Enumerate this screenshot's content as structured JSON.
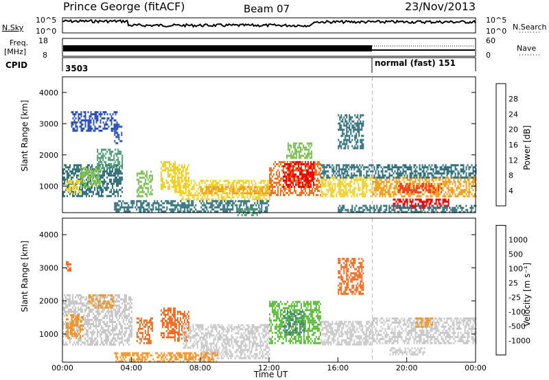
{
  "header": {
    "station": "Prince George (fitACF)",
    "beam": "Beam 07",
    "date": "23/Nov/2013"
  },
  "panels": {
    "nsky": {
      "left_label": "N.Sky",
      "left_ticks": [
        "10^5",
        "10^0"
      ],
      "right_ticks": [
        "10^5",
        "10^0"
      ],
      "right_label": "N.Search"
    },
    "freq": {
      "left_label": "Freq.",
      "left_unit": "[MHz]",
      "left_ticks": [
        "18",
        "8"
      ],
      "right_ticks": [
        "60",
        "0"
      ],
      "right_label": "Nave"
    },
    "cpid": {
      "label": "CPID",
      "value_left": "3503",
      "value_right": "normal (fast) 151"
    }
  },
  "colors": {
    "power": [
      "#1e1ee6",
      "#2a50b4",
      "#2f6f7a",
      "#4a9870",
      "#7cc050",
      "#f0d020",
      "#f0a018",
      "#f07018",
      "#f03a14",
      "#e80000"
    ],
    "velocity": [
      "#1a1adc",
      "#2d5fbe",
      "#3f8a6a",
      "#5fbe3c",
      "#c8c8c8",
      "#c8c8c8",
      "#f09628",
      "#f06a1e",
      "#ee3c14",
      "#e60000"
    ],
    "nsky_line": "#000000",
    "range_gap": "#ffffff"
  },
  "chart_data": [
    {
      "type": "heatmap",
      "name": "power",
      "ylabel": "Slant Range [km]",
      "yticks": [
        "4000",
        "3000",
        "2000",
        "1000"
      ],
      "ylim": [
        150,
        4500
      ],
      "xlim": [
        0,
        24
      ],
      "colorbar_label": "Power [dB]",
      "colorbar_ticks": [
        "28",
        "24",
        "20",
        "16",
        "12",
        "8",
        "4"
      ],
      "colorbar_range": [
        0,
        32
      ],
      "mode_change_hour": 18.0,
      "patches": [
        {
          "t0": 0.0,
          "t1": 3.5,
          "r0": 700,
          "r1": 1700,
          "v": 8
        },
        {
          "t0": 0.2,
          "t1": 1.0,
          "r0": 800,
          "r1": 1200,
          "v": 18
        },
        {
          "t0": 1.0,
          "t1": 2.2,
          "r0": 1000,
          "r1": 1600,
          "v": 14
        },
        {
          "t0": 2.0,
          "t1": 3.5,
          "r0": 1600,
          "r1": 2200,
          "v": 10
        },
        {
          "t0": 3.0,
          "t1": 3.4,
          "r0": 2400,
          "r1": 3000,
          "v": 6
        },
        {
          "t0": 0.5,
          "t1": 3.2,
          "r0": 2800,
          "r1": 3400,
          "v": 5
        },
        {
          "t0": 4.3,
          "t1": 5.2,
          "r0": 700,
          "r1": 1500,
          "v": 14
        },
        {
          "t0": 5.7,
          "t1": 6.5,
          "r0": 900,
          "r1": 1800,
          "v": 16
        },
        {
          "t0": 6.5,
          "t1": 7.3,
          "r0": 800,
          "r1": 1700,
          "v": 18
        },
        {
          "t0": 6.8,
          "t1": 12.0,
          "r0": 600,
          "r1": 1200,
          "v": 16
        },
        {
          "t0": 8.0,
          "t1": 12.0,
          "r0": 800,
          "r1": 1000,
          "v": 22
        },
        {
          "t0": 3.0,
          "t1": 12.0,
          "r0": 200,
          "r1": 550,
          "v": 8
        },
        {
          "t0": 10.0,
          "t1": 11.5,
          "r0": 100,
          "r1": 300,
          "v": 12
        },
        {
          "t0": 12.0,
          "t1": 15.0,
          "r0": 700,
          "r1": 1800,
          "v": 24
        },
        {
          "t0": 12.8,
          "t1": 14.6,
          "r0": 1000,
          "r1": 1800,
          "v": 30
        },
        {
          "t0": 13.0,
          "t1": 14.5,
          "r0": 1900,
          "r1": 2400,
          "v": 14
        },
        {
          "t0": 15.0,
          "t1": 18.0,
          "r0": 700,
          "r1": 1300,
          "v": 18
        },
        {
          "t0": 15.0,
          "t1": 18.0,
          "r0": 1300,
          "r1": 1700,
          "v": 8
        },
        {
          "t0": 16.0,
          "t1": 17.5,
          "r0": 2200,
          "r1": 3300,
          "v": 8
        },
        {
          "t0": 18.0,
          "t1": 24.0,
          "r0": 700,
          "r1": 1300,
          "v": 20
        },
        {
          "t0": 18.0,
          "t1": 24.0,
          "r0": 1300,
          "r1": 1700,
          "v": 8
        },
        {
          "t0": 19.5,
          "t1": 22.0,
          "r0": 800,
          "r1": 1100,
          "v": 26
        },
        {
          "t0": 19.2,
          "t1": 22.5,
          "r0": 300,
          "r1": 600,
          "v": 30
        },
        {
          "t0": 16.0,
          "t1": 24.0,
          "r0": 150,
          "r1": 400,
          "v": 8
        }
      ]
    },
    {
      "type": "heatmap",
      "name": "velocity",
      "ylabel": "Slant Range [km]",
      "yticks": [
        "4000",
        "3000",
        "2000",
        "1000"
      ],
      "ylim": [
        150,
        4500
      ],
      "xlim": [
        0,
        24
      ],
      "colorbar_label": "Velocity [m s⁻¹]",
      "colorbar_ticks": [
        "1000",
        "500",
        "100",
        "25",
        "-25",
        "-100",
        "-500",
        "-1000"
      ],
      "colorbar_range": [
        -1200,
        1200
      ],
      "mode_change_hour": 18.0,
      "patches": [
        {
          "t0": 0.0,
          "t1": 4.0,
          "r0": 700,
          "r1": 2200,
          "v": 0
        },
        {
          "t0": 0.2,
          "t1": 1.2,
          "r0": 900,
          "r1": 1600,
          "v": -350
        },
        {
          "t0": 1.5,
          "t1": 3.0,
          "r0": 1800,
          "r1": 2200,
          "v": -450
        },
        {
          "t0": 0.2,
          "t1": 0.5,
          "r0": 2900,
          "r1": 3200,
          "v": -500
        },
        {
          "t0": 4.3,
          "t1": 5.2,
          "r0": 700,
          "r1": 1500,
          "v": -600
        },
        {
          "t0": 5.7,
          "t1": 6.5,
          "r0": 900,
          "r1": 1800,
          "v": -700
        },
        {
          "t0": 6.5,
          "t1": 7.3,
          "r0": 800,
          "r1": 1700,
          "v": -700
        },
        {
          "t0": 7.0,
          "t1": 12.0,
          "r0": 600,
          "r1": 1300,
          "v": 0
        },
        {
          "t0": 8.0,
          "t1": 12.0,
          "r0": 300,
          "r1": 550,
          "v": 150
        },
        {
          "t0": 3.0,
          "t1": 9.0,
          "r0": 200,
          "r1": 450,
          "v": -450
        },
        {
          "t0": 12.0,
          "t1": 15.0,
          "r0": 700,
          "r1": 2000,
          "v": 300
        },
        {
          "t0": 12.8,
          "t1": 14.0,
          "r0": 1000,
          "r1": 1700,
          "v": 700
        },
        {
          "t0": 15.0,
          "t1": 18.0,
          "r0": 700,
          "r1": 1400,
          "v": 0
        },
        {
          "t0": 16.0,
          "t1": 17.5,
          "r0": 2200,
          "r1": 3300,
          "v": -500
        },
        {
          "t0": 18.0,
          "t1": 24.0,
          "r0": 700,
          "r1": 1500,
          "v": 0
        },
        {
          "t0": 19.0,
          "t1": 21.0,
          "r0": 400,
          "r1": 600,
          "v": 0
        },
        {
          "t0": 20.5,
          "t1": 21.5,
          "r0": 1200,
          "r1": 1500,
          "v": -400
        }
      ]
    }
  ],
  "xaxis": {
    "ticks": [
      "00:00",
      "04:00",
      "08:00",
      "12:00",
      "16:00",
      "20:00",
      "00:00"
    ],
    "label": "Time UT"
  }
}
